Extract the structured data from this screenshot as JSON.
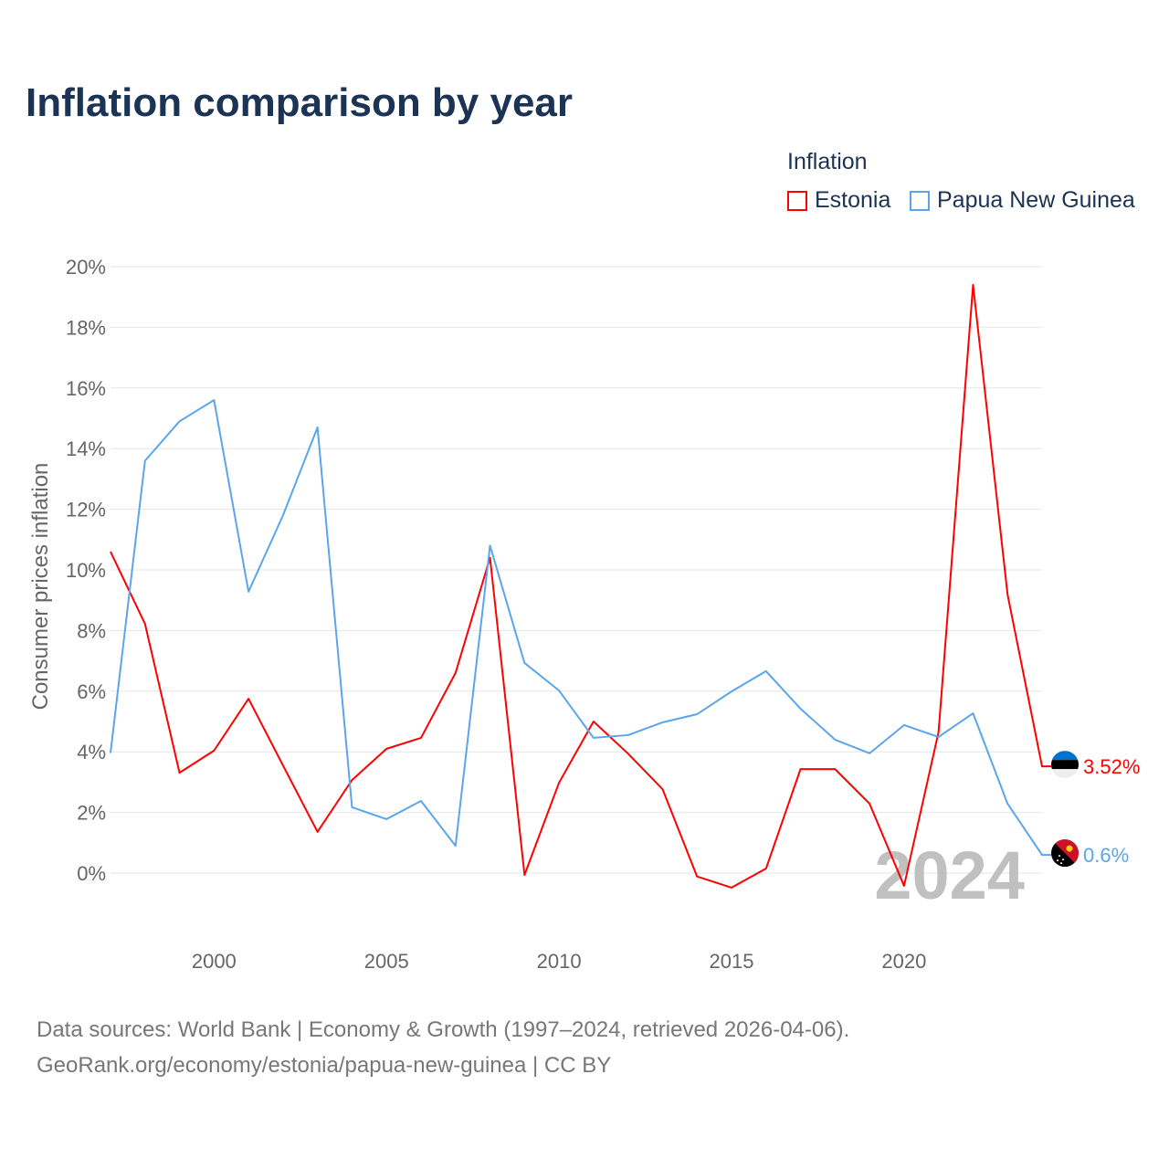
{
  "title": "Inflation comparison by year",
  "legend": {
    "title": "Inflation",
    "items": [
      {
        "label": "Estonia",
        "color": "#ff0000"
      },
      {
        "label": "Papua New Guinea",
        "color": "#5aa5ec"
      }
    ]
  },
  "footer": {
    "line1": "Data sources: World Bank | Economy & Growth (1997–2024, retrieved 2026-04-06).",
    "line2": "GeoRank.org/economy/estonia/papua-new-guinea | CC BY"
  },
  "chart_data": {
    "type": "line",
    "title": "Inflation comparison by year",
    "xlabel": "",
    "ylabel": "Consumer prices inflation",
    "ylim": [
      -2,
      20
    ],
    "xlim": [
      1997,
      2024
    ],
    "year_watermark": "2024",
    "yticks": [
      0,
      2,
      4,
      6,
      8,
      10,
      12,
      14,
      16,
      18,
      20
    ],
    "ytick_labels": [
      "0%",
      "2%",
      "4%",
      "6%",
      "8%",
      "10%",
      "12%",
      "14%",
      "16%",
      "18%",
      "20%"
    ],
    "xticks": [
      2000,
      2005,
      2010,
      2015,
      2020
    ],
    "xtick_labels": [
      "2000",
      "2005",
      "2010",
      "2015",
      "2020"
    ],
    "x": [
      1997,
      1998,
      1999,
      2000,
      2001,
      2002,
      2003,
      2004,
      2005,
      2006,
      2007,
      2008,
      2009,
      2010,
      2011,
      2012,
      2013,
      2014,
      2015,
      2016,
      2017,
      2018,
      2019,
      2020,
      2021,
      2022,
      2023,
      2024
    ],
    "series": [
      {
        "name": "Estonia",
        "color": "#ff0000",
        "end_label": "3.52%",
        "values": [
          10.6,
          8.22,
          3.31,
          4.04,
          5.75,
          3.55,
          1.36,
          3.07,
          4.1,
          4.46,
          6.6,
          10.4,
          -0.06,
          2.98,
          5.0,
          3.94,
          2.77,
          -0.11,
          -0.48,
          0.15,
          3.43,
          3.43,
          2.29,
          -0.42,
          4.65,
          19.4,
          9.19,
          3.52
        ]
      },
      {
        "name": "Papua New Guinea",
        "color": "#5aa5ec",
        "end_label": "0.6%",
        "values": [
          3.96,
          13.6,
          14.9,
          15.6,
          9.28,
          11.8,
          14.7,
          2.17,
          1.78,
          2.38,
          0.9,
          10.8,
          6.93,
          6.02,
          4.46,
          4.55,
          4.97,
          5.24,
          5.99,
          6.66,
          5.42,
          4.4,
          3.95,
          4.88,
          4.49,
          5.27,
          2.29,
          0.6
        ]
      }
    ]
  }
}
